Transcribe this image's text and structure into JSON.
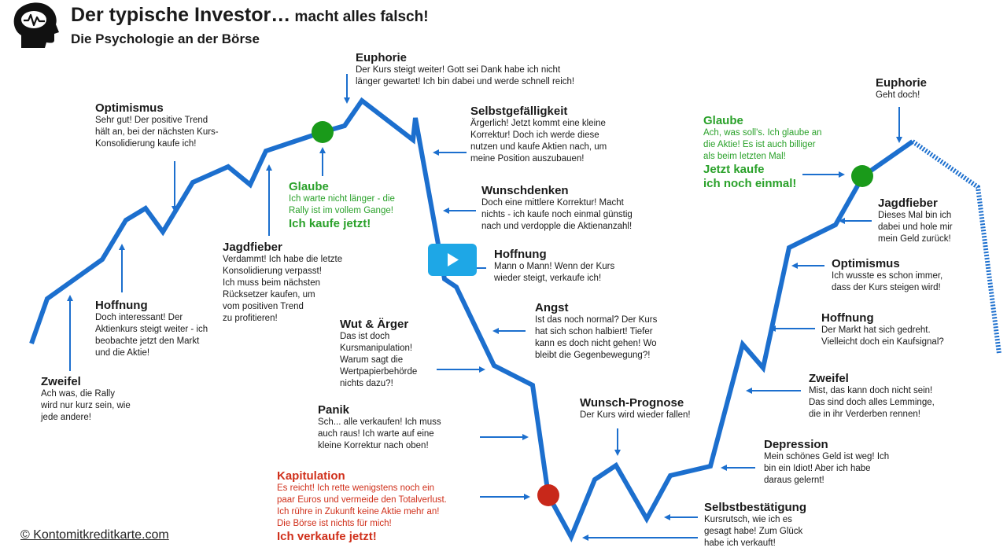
{
  "header": {
    "title_main": "Der typische Investor…",
    "title_suffix": " macht alles falsch!",
    "subtitle": "Die Psychologie an der Börse"
  },
  "copyright": "© Kontomitkreditkarte.com",
  "colors": {
    "line": "#1c6fce",
    "green": "#2aa12a",
    "red": "#d0301b",
    "marker_green": "#1a9a1a",
    "marker_red": "#c8281a",
    "play": "#1ea7e6"
  },
  "icons": {
    "logo": "head-brain-icon",
    "play": "play-icon"
  },
  "stages": {
    "zweifel_1": {
      "heading": "Zweifel",
      "text": "Ach was, die Rally\nwird nur kurz sein, wie\njede andere!"
    },
    "hoffnung_1": {
      "heading": "Hoffnung",
      "text": "Doch interessant! Der\nAktienkurs steigt weiter - ich\nbeobachte jetzt den Markt\nund die Aktie!"
    },
    "optimismus_1": {
      "heading": "Optimismus",
      "text": "Sehr gut! Der positive Trend\nhält an, bei der nächsten Kurs-\nKonsolidierung kaufe ich!"
    },
    "jagdfieber_1": {
      "heading": "Jagdfieber",
      "text": "Verdammt! Ich habe die letzte\nKonsolidierung verpasst!\nIch muss beim nächsten\nRücksetzer kaufen, um\nvom positiven Trend\nzu profitieren!"
    },
    "glaube_1": {
      "heading": "Glaube",
      "text": "Ich warte nicht länger - die\nRally ist im vollem Gange!",
      "cta": "Ich kaufe jetzt!"
    },
    "euphorie_1": {
      "heading": "Euphorie",
      "text": "Der Kurs steigt weiter! Gott sei Dank habe ich nicht\nlänger gewartet! Ich bin dabei und werde schnell reich!"
    },
    "selbstgefaelligkeit": {
      "heading": "Selbstgefälligkeit",
      "text": "Ärgerlich! Jetzt kommt eine kleine\nKorrektur! Doch ich werde diese\nnutzen und kaufe Aktien nach, um\nmeine Position auszubauen!"
    },
    "wunschdenken": {
      "heading": "Wunschdenken",
      "text": "Doch eine mittlere Korrektur! Macht\nnichts - ich kaufe noch einmal günstig\nnach und verdopple die Aktienanzahl!"
    },
    "hoffnung_2": {
      "heading": "Hoffnung",
      "text": "Mann o Mann! Wenn der Kurs\nwieder steigt, verkaufe ich!"
    },
    "angst": {
      "heading": "Angst",
      "text": "Ist das noch normal? Der Kurs\nhat sich schon halbiert! Tiefer\nkann es doch nicht gehen! Wo\nbleibt die Gegenbewegung?!"
    },
    "wut": {
      "heading": "Wut & Ärger",
      "text": "Das ist doch\nKursmanipulation!\nWarum sagt die\nWertpapierbehörde\nnichts dazu?!"
    },
    "panik": {
      "heading": "Panik",
      "text": "Sch... alle verkaufen! Ich muss\nauch raus! Ich warte auf eine\nkleine Korrektur nach oben!"
    },
    "kapitulation": {
      "heading": "Kapitulation",
      "text": "Es reicht! Ich rette wenigstens noch ein\npaar Euros und vermeide den Totalverlust.\nIch rühre in Zukunft keine Aktie mehr an!\nDie Börse ist nichts für mich!",
      "cta": "Ich verkaufe jetzt!"
    },
    "wunsch_prognose": {
      "heading": "Wunsch-Prognose",
      "text": "Der Kurs wird wieder fallen!"
    },
    "selbstbestaetigung": {
      "heading": "Selbstbestätigung",
      "text": "Kursrutsch, wie ich es\ngesagt habe! Zum Glück\nhabe ich verkauft!"
    },
    "depression": {
      "heading": "Depression",
      "text": "Mein schönes Geld ist weg! Ich\nbin ein Idiot! Aber ich habe\ndaraus gelernt!"
    },
    "zweifel_2": {
      "heading": "Zweifel",
      "text": "Mist, das kann doch nicht sein!\nDas sind doch alles Lemminge,\ndie in ihr Verderben rennen!"
    },
    "hoffnung_3": {
      "heading": "Hoffnung",
      "text": "Der Markt hat sich gedreht.\nVielleicht doch ein Kaufsignal?"
    },
    "optimismus_2": {
      "heading": "Optimismus",
      "text": "Ich wusste es schon immer,\ndass der Kurs steigen wird!"
    },
    "jagdfieber_2": {
      "heading": "Jagdfieber",
      "text": "Dieses Mal bin ich\ndabei und hole mir\nmein Geld zurück!"
    },
    "glaube_2": {
      "heading": "Glaube",
      "text": "Ach, was soll's. Ich glaube an\ndie Aktie! Es ist auch billiger\nals beim letzten Mal!",
      "cta": "Jetzt kaufe\nich noch einmal!"
    },
    "euphorie_2": {
      "heading": "Euphorie",
      "text": "Geht doch!"
    }
  }
}
